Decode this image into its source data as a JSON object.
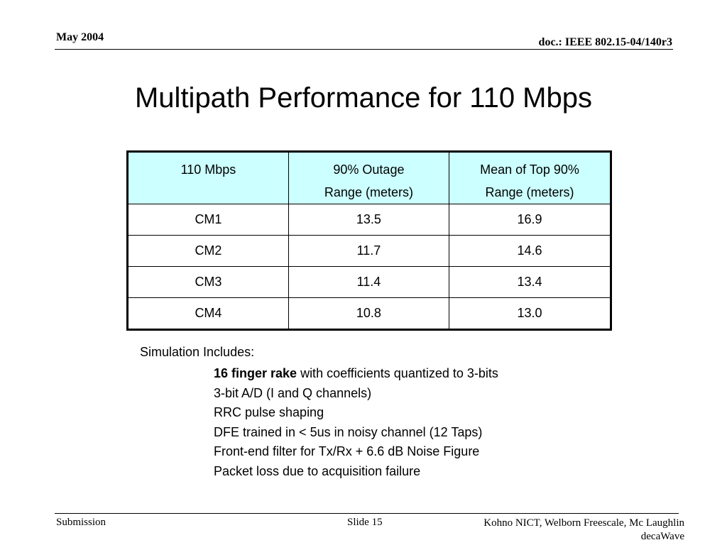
{
  "header": {
    "date": "May 2004",
    "doc_id": "doc.: IEEE 802.15-04/140r3"
  },
  "slide": {
    "title": "Multipath Performance for 110 Mbps"
  },
  "table": {
    "header_fill": "#ccffff",
    "columns": [
      {
        "lines": [
          "110 Mbps"
        ]
      },
      {
        "lines": [
          "90% Outage",
          "Range (meters)"
        ]
      },
      {
        "lines": [
          "Mean of Top 90%",
          "Range (meters)"
        ]
      }
    ],
    "rows": [
      [
        "CM1",
        "13.5",
        "16.9"
      ],
      [
        "CM2",
        "11.7",
        "14.6"
      ],
      [
        "CM3",
        "11.4",
        "13.4"
      ],
      [
        "CM4",
        "10.8",
        "13.0"
      ]
    ]
  },
  "simulation": {
    "label": "Simulation Includes:",
    "items": [
      {
        "bold": "16 finger rake",
        "text": " with coefficients quantized to 3-bits"
      },
      {
        "bold": "",
        "text": "3-bit A/D (I and Q channels)"
      },
      {
        "bold": "",
        "text": "RRC pulse shaping"
      },
      {
        "bold": "",
        "text": "DFE trained in < 5us in noisy channel (12 Taps)"
      },
      {
        "bold": "",
        "text": "Front-end filter for Tx/Rx + 6.6 dB Noise Figure"
      },
      {
        "bold": "",
        "text": "Packet loss due to acquisition failure"
      }
    ]
  },
  "footer": {
    "left": "Submission",
    "slide_number": "Slide 15",
    "authors_line1": "Kohno NICT, Welborn Freescale, Mc Laughlin",
    "authors_line2": "decaWave"
  }
}
